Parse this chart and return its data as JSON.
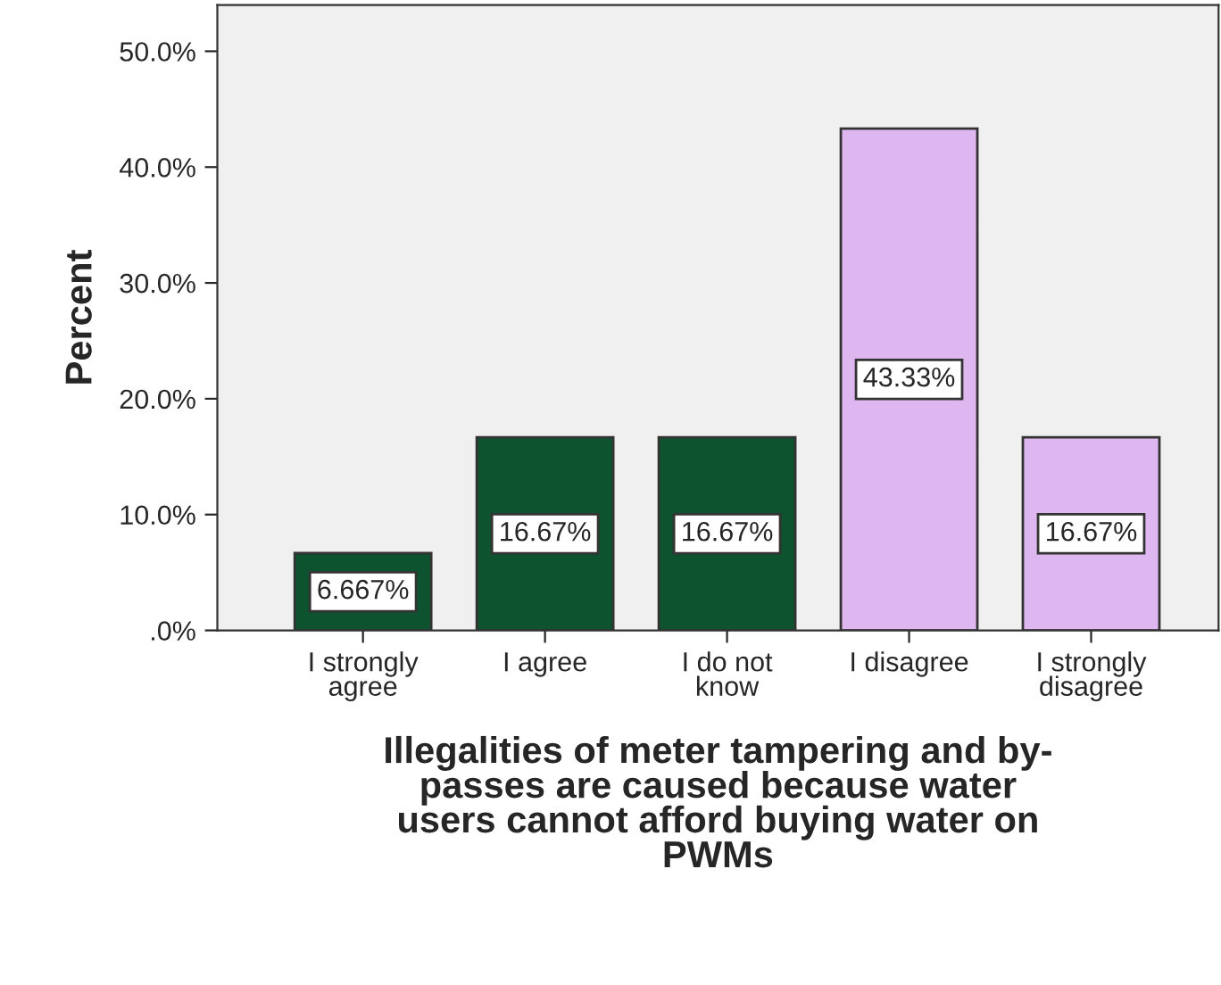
{
  "chart_data": {
    "type": "bar",
    "categories": [
      "I strongly\nagree",
      "I agree",
      "I do not\nknow",
      "I disagree",
      "I strongly\ndisagree"
    ],
    "values": [
      6.667,
      16.67,
      16.67,
      43.33,
      16.67
    ],
    "value_labels": [
      "6.667%",
      "16.67%",
      "16.67%",
      "43.33%",
      "16.67%"
    ],
    "colors": [
      "#0d5330",
      "#0d5330",
      "#0d5330",
      "#dfb7f0",
      "#dfb7f0"
    ],
    "ylabel": "Percent",
    "xlabel": "Illegalities of meter tampering and by-\npasses are caused because water\nusers cannot afford buying water on\nPWMs",
    "ylim": [
      0,
      54
    ],
    "yticks": [
      {
        "value": 0,
        "label": ".0%"
      },
      {
        "value": 10,
        "label": "10.0%"
      },
      {
        "value": 20,
        "label": "20.0%"
      },
      {
        "value": 30,
        "label": "30.0%"
      },
      {
        "value": 40,
        "label": "40.0%"
      },
      {
        "value": 50,
        "label": "50.0%"
      }
    ],
    "grid": false,
    "legend": false
  }
}
